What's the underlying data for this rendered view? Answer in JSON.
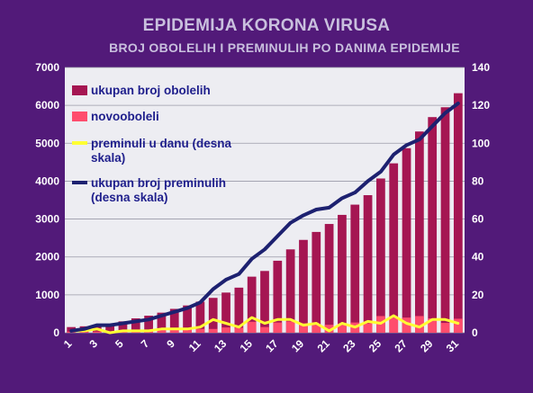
{
  "chart_data": {
    "type": "bar",
    "title": "EPIDEMIJA KORONA VIRUSA",
    "subtitle": "BROJ OBOLELIH I PREMINULIH PO DANIMA EPIDEMIJE",
    "x": [
      1,
      2,
      3,
      4,
      5,
      6,
      7,
      8,
      9,
      10,
      11,
      12,
      13,
      14,
      15,
      16,
      17,
      18,
      19,
      20,
      21,
      22,
      23,
      24,
      25,
      26,
      27,
      28,
      29,
      30,
      31
    ],
    "x_tick_labels": [
      "1",
      "3",
      "5",
      "7",
      "9",
      "11",
      "13",
      "15",
      "17",
      "19",
      "21",
      "23",
      "25",
      "27",
      "29",
      "31"
    ],
    "ylim_left": [
      0,
      7000
    ],
    "yticks_left": [
      0,
      1000,
      2000,
      3000,
      4000,
      5000,
      6000,
      7000
    ],
    "ylim_right": [
      0,
      140
    ],
    "yticks_right": [
      0,
      20,
      40,
      60,
      80,
      100,
      120,
      140
    ],
    "grid": true,
    "legend_position": "top-left",
    "series": [
      {
        "name": "ukupan broj obolelih",
        "type": "bar",
        "axis": "left",
        "color": "#a51652",
        "values": [
          150,
          170,
          200,
          230,
          300,
          380,
          450,
          530,
          630,
          720,
          820,
          920,
          1060,
          1190,
          1480,
          1630,
          1900,
          2200,
          2450,
          2660,
          2870,
          3110,
          3380,
          3630,
          4070,
          4470,
          4870,
          5310,
          5690,
          5950,
          6320
        ]
      },
      {
        "name": "novooboleli",
        "type": "bar",
        "axis": "left",
        "color": "#ff4d6d",
        "values": [
          30,
          20,
          30,
          30,
          70,
          80,
          70,
          80,
          100,
          90,
          100,
          100,
          140,
          130,
          290,
          150,
          270,
          300,
          250,
          210,
          210,
          240,
          270,
          250,
          440,
          400,
          400,
          440,
          380,
          260,
          370
        ]
      },
      {
        "name_lines": [
          "preminuli u danu (desna",
          "skala)"
        ],
        "type": "line",
        "axis": "right",
        "color": "#ffff33",
        "values": [
          1,
          1,
          2,
          0,
          1,
          1,
          1,
          2,
          2,
          2,
          3,
          7,
          5,
          3,
          8,
          5,
          7,
          7,
          4,
          5,
          1,
          5,
          3,
          6,
          5,
          9,
          5,
          3,
          7,
          7,
          5
        ]
      },
      {
        "name_lines": [
          "ukupan broj preminulih",
          "(desna skala)"
        ],
        "type": "line",
        "axis": "right",
        "color": "#1d2170",
        "values": [
          1,
          2,
          4,
          4,
          5,
          6,
          7,
          9,
          11,
          13,
          16,
          23,
          28,
          31,
          39,
          44,
          51,
          58,
          62,
          65,
          66,
          71,
          74,
          80,
          85,
          94,
          99,
          102,
          109,
          116,
          121
        ]
      }
    ]
  }
}
